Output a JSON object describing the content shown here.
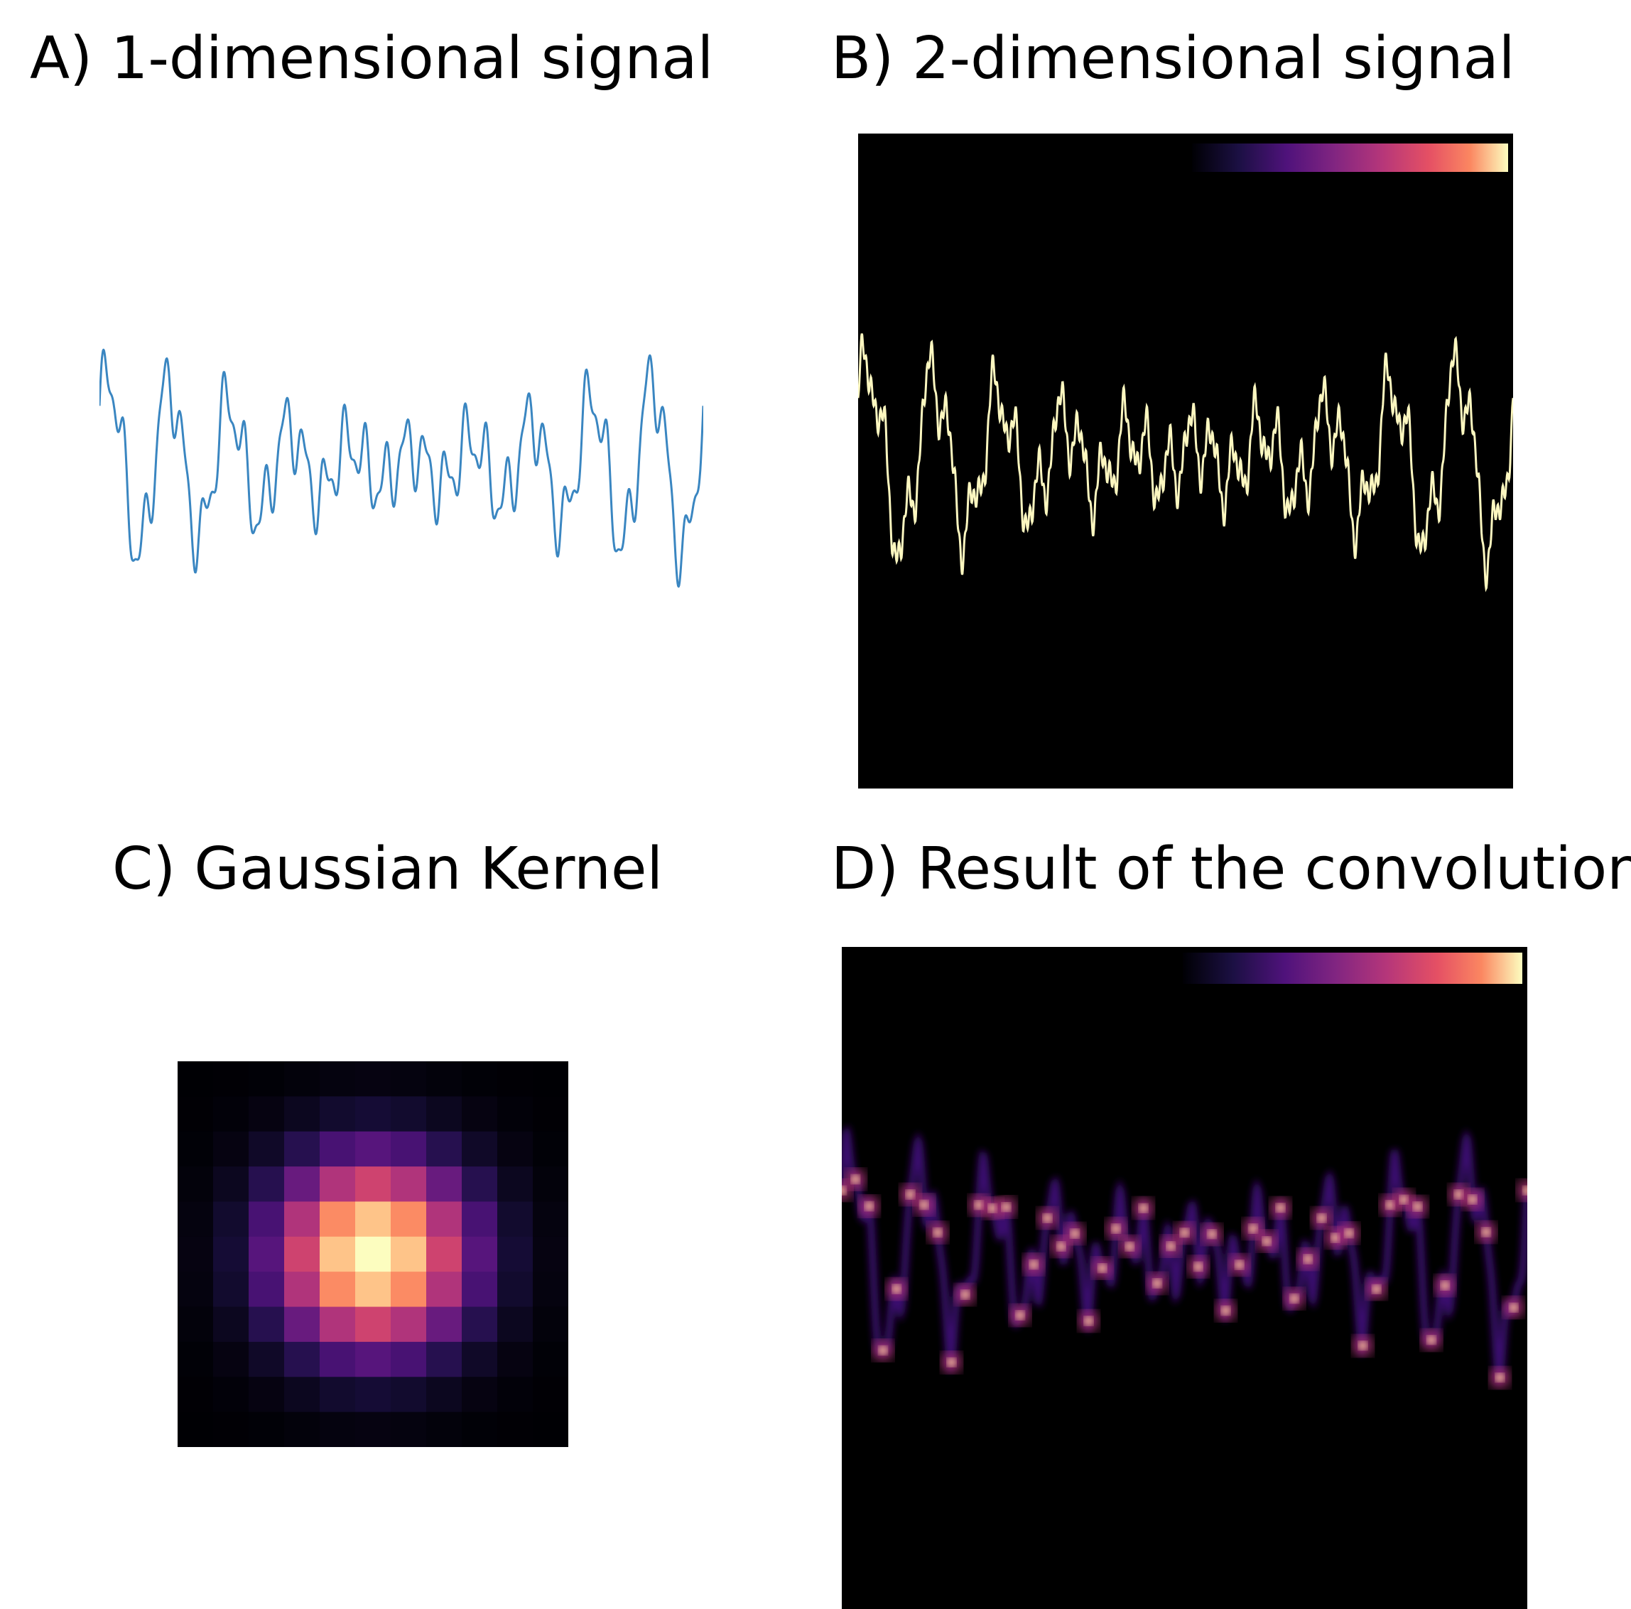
{
  "panels": {
    "a": {
      "title": "A) 1-dimensional signal"
    },
    "b": {
      "title": "B) 2-dimensional signal"
    },
    "c": {
      "title": "C) Gaussian Kernel"
    },
    "d": {
      "title": "D) Result of the convolution"
    }
  },
  "colors": {
    "signal_line": "#3a86c1",
    "signal_2d": "#fcf7c0",
    "background_dark": "#000000",
    "colormap": "magma"
  }
}
